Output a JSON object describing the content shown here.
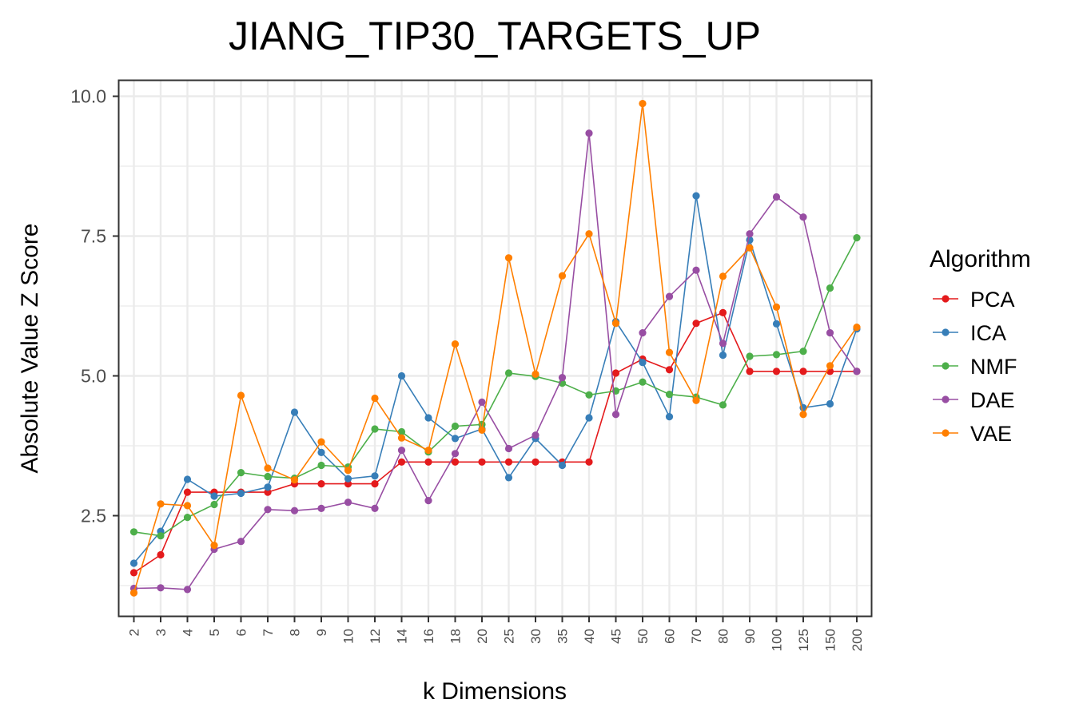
{
  "chart_data": {
    "type": "line",
    "title": "JIANG_TIP30_TARGETS_UP",
    "xlabel": "k Dimensions",
    "ylabel": "Absolute Value Z Score",
    "categories": [
      "2",
      "3",
      "4",
      "5",
      "6",
      "7",
      "8",
      "9",
      "10",
      "12",
      "14",
      "16",
      "18",
      "20",
      "25",
      "30",
      "35",
      "40",
      "45",
      "50",
      "60",
      "70",
      "80",
      "90",
      "100",
      "125",
      "150",
      "200"
    ],
    "ylim": [
      0.8,
      10.3
    ],
    "yticks": [
      2.5,
      5.0,
      7.5,
      10.0
    ],
    "ytick_labels": [
      "2.5",
      "5.0",
      "7.5",
      "10.0"
    ],
    "grid": true,
    "legend": {
      "title": "Algorithm",
      "position": "right"
    },
    "series": [
      {
        "name": "PCA",
        "color": "#e41a1c",
        "values": [
          1.48,
          1.8,
          2.92,
          2.92,
          2.92,
          2.92,
          3.07,
          3.07,
          3.07,
          3.07,
          3.46,
          3.46,
          3.46,
          3.46,
          3.46,
          3.46,
          3.46,
          3.46,
          5.05,
          5.3,
          5.11,
          5.94,
          6.13,
          5.08,
          5.08,
          5.08,
          5.08,
          5.08
        ]
      },
      {
        "name": "ICA",
        "color": "#377eb8",
        "values": [
          1.65,
          2.22,
          3.15,
          2.85,
          2.9,
          3.01,
          4.35,
          3.63,
          3.16,
          3.21,
          5.0,
          4.25,
          3.88,
          4.05,
          3.18,
          3.88,
          3.4,
          4.25,
          5.97,
          5.24,
          4.27,
          8.22,
          5.37,
          7.43,
          5.93,
          4.43,
          4.5,
          5.84
        ]
      },
      {
        "name": "NMF",
        "color": "#4daf4a",
        "values": [
          2.21,
          2.14,
          2.47,
          2.7,
          3.27,
          3.2,
          3.17,
          3.4,
          3.37,
          4.05,
          4.0,
          3.64,
          4.1,
          4.13,
          5.05,
          4.99,
          4.87,
          4.66,
          4.73,
          4.89,
          4.67,
          4.62,
          4.48,
          5.35,
          5.38,
          5.44,
          6.57,
          7.47
        ]
      },
      {
        "name": "DAE",
        "color": "#984ea3",
        "values": [
          1.2,
          1.21,
          1.18,
          1.9,
          2.04,
          2.61,
          2.59,
          2.63,
          2.74,
          2.63,
          3.67,
          2.77,
          3.61,
          4.53,
          3.7,
          3.94,
          4.97,
          9.34,
          4.31,
          5.77,
          6.42,
          6.89,
          5.58,
          7.54,
          8.2,
          7.84,
          5.77,
          5.08
        ]
      },
      {
        "name": "VAE",
        "color": "#ff7f00",
        "values": [
          1.12,
          2.71,
          2.68,
          1.97,
          4.65,
          3.35,
          3.14,
          3.82,
          3.31,
          4.6,
          3.89,
          3.67,
          5.57,
          4.03,
          7.11,
          5.03,
          6.79,
          7.54,
          5.94,
          9.87,
          5.42,
          4.56,
          6.78,
          7.29,
          6.23,
          4.31,
          5.18,
          5.87
        ]
      }
    ]
  }
}
